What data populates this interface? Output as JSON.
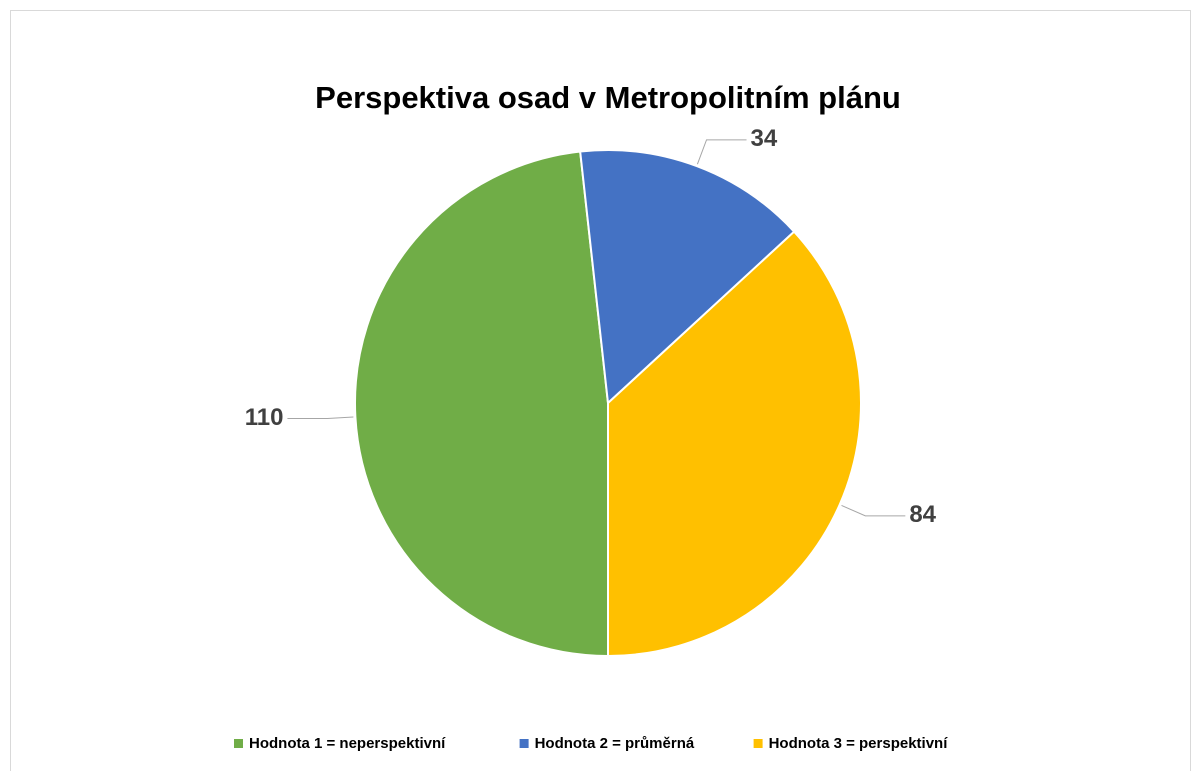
{
  "chart_data": {
    "type": "pie",
    "title": "Perspektiva osad v Metropolitním plánu",
    "categories": [
      "Hodnota 1 = neperspektivní",
      "Hodnota 2 = průměrná",
      "Hodnota 3 = perspektivní"
    ],
    "values": [
      110,
      34,
      84
    ],
    "colors": [
      "#70ad47",
      "#4472c4",
      "#ffc000"
    ],
    "start_angle": 180,
    "legend": "bottom"
  }
}
